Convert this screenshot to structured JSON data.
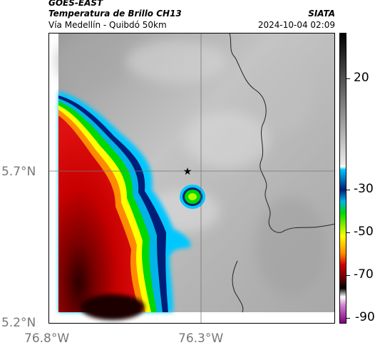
{
  "header": {
    "title": "GOES-EAST",
    "subtitle": "Temperatura de Brillo CH13",
    "location": "Vía Medellín - Quibdó 50km",
    "org": "SIATA",
    "timestamp": "2024-10-04 02:09"
  },
  "map": {
    "x_ticks": [
      "76.8°W",
      "76.3°W"
    ],
    "y_ticks": [
      "5.7°N",
      "5.2°N"
    ],
    "marker": "star-icon"
  },
  "colorbar": {
    "labels": [
      "20",
      "-30",
      "-50",
      "-70",
      "-90"
    ]
  },
  "colors": {
    "gray_cloud": "#b8b8b8",
    "deep_red": "#b40000",
    "cyan": "#00c8ff",
    "green": "#00d800",
    "yellow": "#ffff00",
    "navy": "#001e78"
  }
}
